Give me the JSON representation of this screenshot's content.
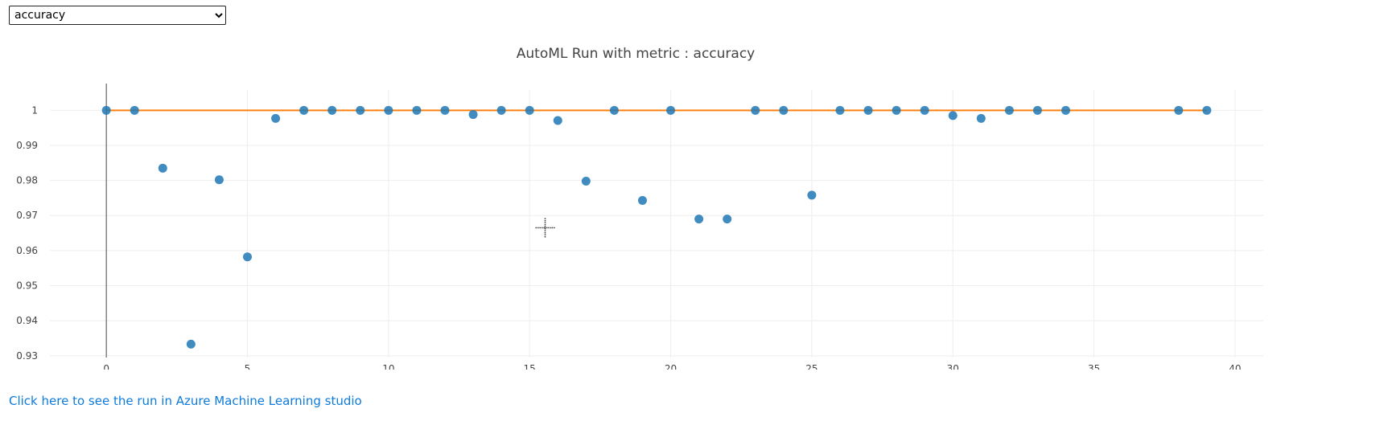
{
  "metric_select": {
    "selected": "accuracy",
    "options": [
      "accuracy"
    ]
  },
  "link": {
    "text": "Click here to see the run in Azure Machine Learning studio"
  },
  "colors": {
    "points": "#1f77b4",
    "best_line": "#ff7f0e",
    "grid": "#eeeeee",
    "link": "#0c7bdc"
  },
  "chart_data": {
    "type": "scatter",
    "title": "AutoML Run with metric : accuracy",
    "xlim": [
      -2,
      41
    ],
    "ylim": [
      0.9295,
      1.0058
    ],
    "x_ticks": [
      0,
      5,
      10,
      15,
      20,
      25,
      30,
      35,
      40
    ],
    "y_ticks": [
      0.93,
      0.94,
      0.95,
      0.96,
      0.97,
      0.98,
      0.99,
      1
    ],
    "y_tick_labels": [
      "0.93",
      "0.94",
      "0.95",
      "0.96",
      "0.97",
      "0.98",
      "0.99",
      "1"
    ],
    "grid": true,
    "legend": "none",
    "series": [
      {
        "mode": "markers",
        "x": [
          0,
          1,
          2,
          3,
          4,
          5,
          6,
          7,
          8,
          9,
          10,
          11,
          12,
          13,
          14,
          15,
          16,
          17,
          18,
          19,
          20,
          21,
          22,
          23,
          24,
          25,
          26,
          27,
          28,
          29,
          30,
          31,
          32,
          33,
          34,
          38,
          39
        ],
        "y": [
          1.0,
          1.0,
          0.9835,
          0.9333,
          0.9802,
          0.9582,
          0.9977,
          1.0,
          1.0,
          1.0,
          1.0,
          1.0,
          1.0,
          0.9988,
          1.0,
          1.0,
          0.9971,
          0.9798,
          1.0,
          0.9743,
          1.0,
          0.969,
          0.969,
          1.0,
          1.0,
          0.9758,
          1.0,
          1.0,
          1.0,
          1.0,
          0.9985,
          0.9977,
          1.0,
          1.0,
          1.0,
          1.0,
          1.0
        ]
      },
      {
        "mode": "line",
        "x": [
          0,
          1,
          2,
          3,
          4,
          5,
          6,
          7,
          8,
          9,
          10,
          11,
          12,
          13,
          14,
          15,
          16,
          17,
          18,
          19,
          20,
          21,
          22,
          23,
          24,
          25,
          26,
          27,
          28,
          29,
          30,
          31,
          32,
          33,
          34,
          38,
          39
        ],
        "y": [
          1,
          1,
          1,
          1,
          1,
          1,
          1,
          1,
          1,
          1,
          1,
          1,
          1,
          1,
          1,
          1,
          1,
          1,
          1,
          1,
          1,
          1,
          1,
          1,
          1,
          1,
          1,
          1,
          1,
          1,
          1,
          1,
          1,
          1,
          1,
          1,
          1
        ]
      }
    ]
  }
}
